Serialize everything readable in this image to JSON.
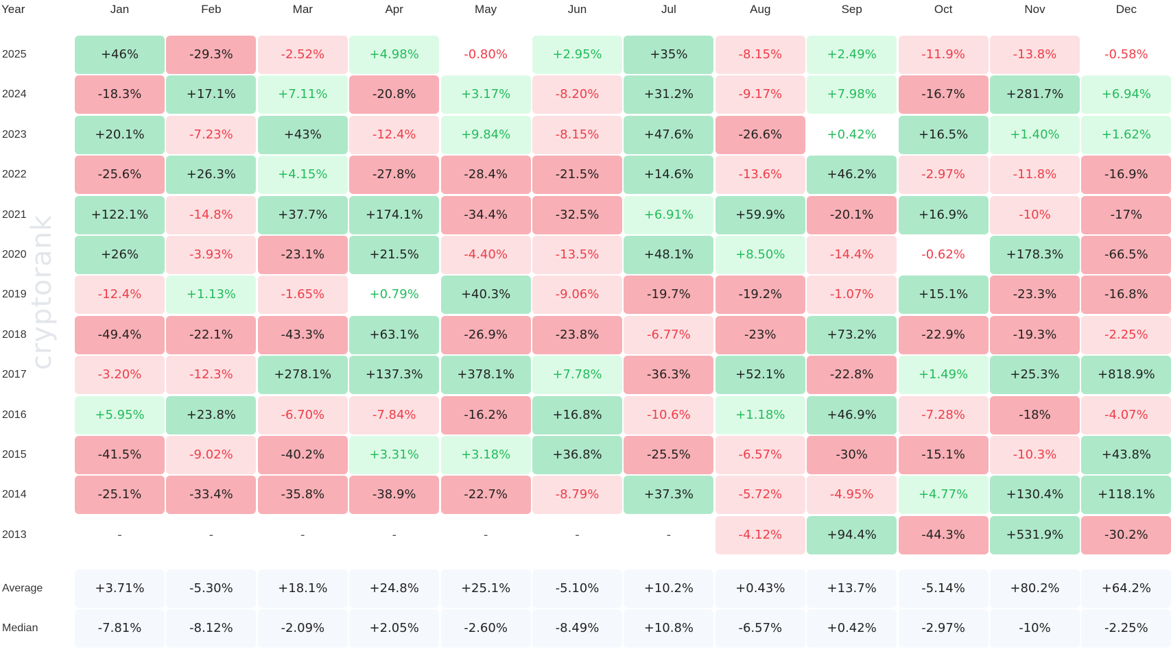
{
  "watermark": "cryptorank",
  "colors": {
    "strong_pos_bg": "#ade8c9",
    "light_pos_bg": "#dcfbe6",
    "strong_neg_bg": "#f8afb5",
    "light_neg_bg": "#fde0e2",
    "stat_bg": "#f5f8fd",
    "pos_text": "#23bb5c",
    "neg_text": "#ee3d48",
    "dark_text": "#222222"
  },
  "chart_data": {
    "type": "heatmap",
    "title": "",
    "row_header": "Year",
    "columns": [
      "Jan",
      "Feb",
      "Mar",
      "Apr",
      "May",
      "Jun",
      "Jul",
      "Aug",
      "Sep",
      "Oct",
      "Nov",
      "Dec"
    ],
    "rows": [
      {
        "year": "2025",
        "values": [
          "+46%",
          "-29.3%",
          "-2.52%",
          "+4.98%",
          "-0.80%",
          "+2.95%",
          "+35%",
          "-8.15%",
          "+2.49%",
          "-11.9%",
          "-13.8%",
          "-0.58%"
        ]
      },
      {
        "year": "2024",
        "values": [
          "-18.3%",
          "+17.1%",
          "+7.11%",
          "-20.8%",
          "+3.17%",
          "-8.20%",
          "+31.2%",
          "-9.17%",
          "+7.98%",
          "-16.7%",
          "+281.7%",
          "+6.94%"
        ]
      },
      {
        "year": "2023",
        "values": [
          "+20.1%",
          "-7.23%",
          "+43%",
          "-12.4%",
          "+9.84%",
          "-8.15%",
          "+47.6%",
          "-26.6%",
          "+0.42%",
          "+16.5%",
          "+1.40%",
          "+1.62%"
        ]
      },
      {
        "year": "2022",
        "values": [
          "-25.6%",
          "+26.3%",
          "+4.15%",
          "-27.8%",
          "-28.4%",
          "-21.5%",
          "+14.6%",
          "-13.6%",
          "+46.2%",
          "-2.97%",
          "-11.8%",
          "-16.9%"
        ]
      },
      {
        "year": "2021",
        "values": [
          "+122.1%",
          "-14.8%",
          "+37.7%",
          "+174.1%",
          "-34.4%",
          "-32.5%",
          "+6.91%",
          "+59.9%",
          "-20.1%",
          "+16.9%",
          "-10%",
          "-17%"
        ]
      },
      {
        "year": "2020",
        "values": [
          "+26%",
          "-3.93%",
          "-23.1%",
          "+21.5%",
          "-4.40%",
          "-13.5%",
          "+48.1%",
          "+8.50%",
          "-14.4%",
          "-0.62%",
          "+178.3%",
          "-66.5%"
        ]
      },
      {
        "year": "2019",
        "values": [
          "-12.4%",
          "+1.13%",
          "-1.65%",
          "+0.79%",
          "+40.3%",
          "-9.06%",
          "-19.7%",
          "-19.2%",
          "-1.07%",
          "+15.1%",
          "-23.3%",
          "-16.8%"
        ]
      },
      {
        "year": "2018",
        "values": [
          "-49.4%",
          "-22.1%",
          "-43.3%",
          "+63.1%",
          "-26.9%",
          "-23.8%",
          "-6.77%",
          "-23%",
          "+73.2%",
          "-22.9%",
          "-19.3%",
          "-2.25%"
        ]
      },
      {
        "year": "2017",
        "values": [
          "-3.20%",
          "-12.3%",
          "+278.1%",
          "+137.3%",
          "+378.1%",
          "+7.78%",
          "-36.3%",
          "+52.1%",
          "-22.8%",
          "+1.49%",
          "+25.3%",
          "+818.9%"
        ]
      },
      {
        "year": "2016",
        "values": [
          "+5.95%",
          "+23.8%",
          "-6.70%",
          "-7.84%",
          "-16.2%",
          "+16.8%",
          "-10.6%",
          "+1.18%",
          "+46.9%",
          "-7.28%",
          "-18%",
          "-4.07%"
        ]
      },
      {
        "year": "2015",
        "values": [
          "-41.5%",
          "-9.02%",
          "-40.2%",
          "+3.31%",
          "+3.18%",
          "+36.8%",
          "-25.5%",
          "-6.57%",
          "-30%",
          "-15.1%",
          "-10.3%",
          "+43.8%"
        ]
      },
      {
        "year": "2014",
        "values": [
          "-25.1%",
          "-33.4%",
          "-35.8%",
          "-38.9%",
          "-22.7%",
          "-8.79%",
          "+37.3%",
          "-5.72%",
          "-4.95%",
          "+4.77%",
          "+130.4%",
          "+118.1%"
        ]
      },
      {
        "year": "2013",
        "values": [
          "-",
          "-",
          "-",
          "-",
          "-",
          "-",
          "-",
          "-4.12%",
          "+94.4%",
          "-44.3%",
          "+531.9%",
          "-30.2%"
        ]
      }
    ],
    "summary": [
      {
        "label": "Average",
        "values": [
          "+3.71%",
          "-5.30%",
          "+18.1%",
          "+24.8%",
          "+25.1%",
          "-5.10%",
          "+10.2%",
          "+0.43%",
          "+13.7%",
          "-5.14%",
          "+80.2%",
          "+64.2%"
        ]
      },
      {
        "label": "Median",
        "values": [
          "-7.81%",
          "-8.12%",
          "-2.09%",
          "+2.05%",
          "-2.60%",
          "-8.49%",
          "+10.8%",
          "-6.57%",
          "+0.42%",
          "-2.97%",
          "-10%",
          "-2.25%"
        ]
      }
    ]
  }
}
